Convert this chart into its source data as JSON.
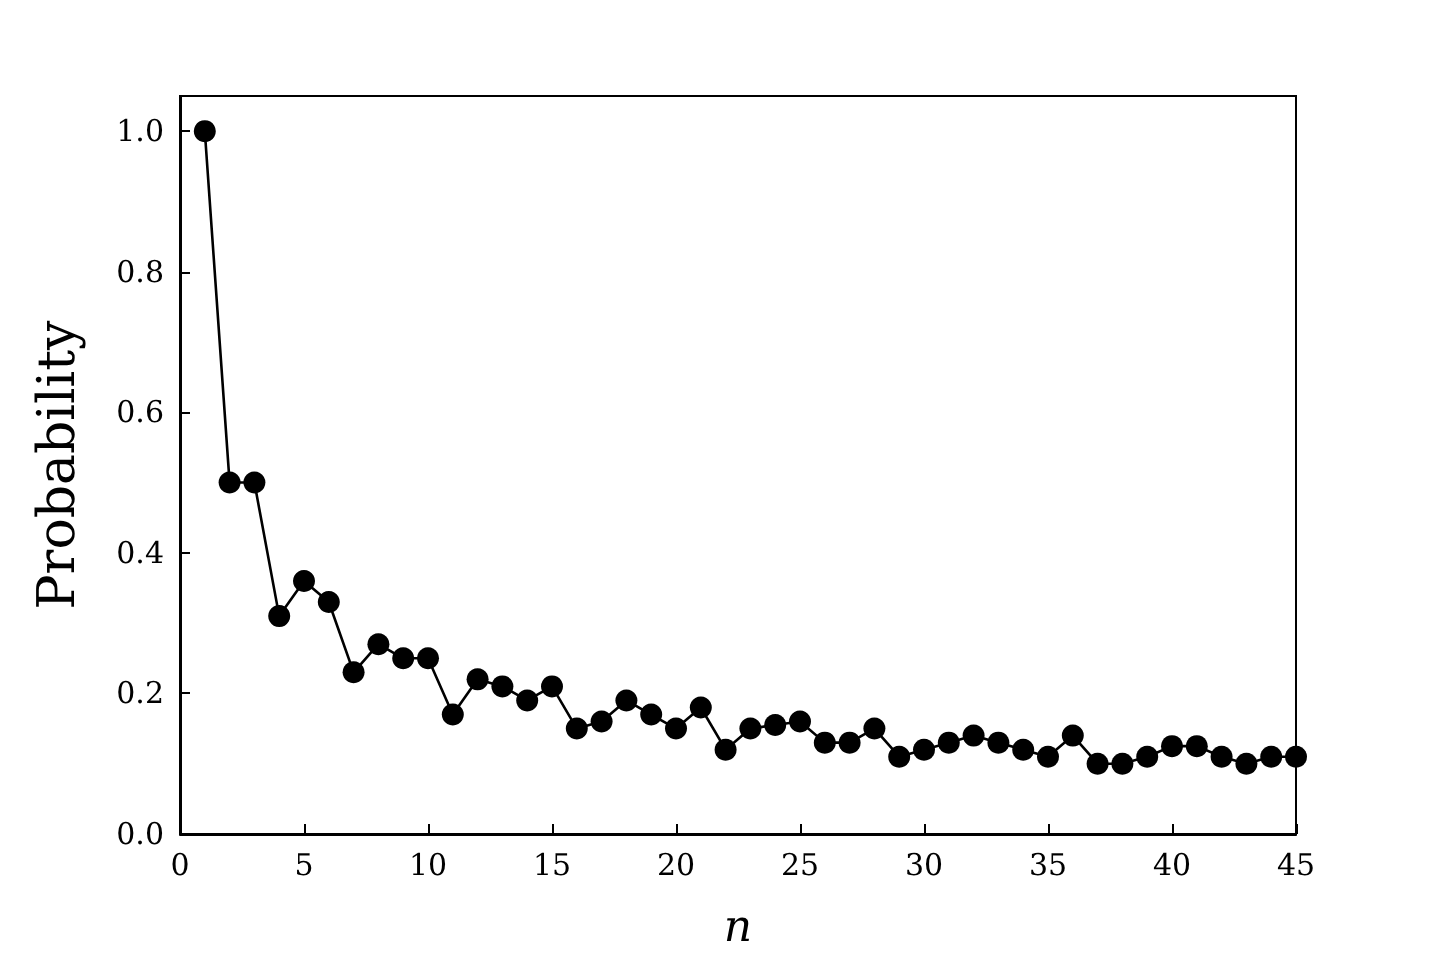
{
  "chart_data": {
    "type": "line",
    "xlabel": "n",
    "ylabel": "Probability",
    "x": [
      1,
      2,
      3,
      4,
      5,
      6,
      7,
      8,
      9,
      10,
      11,
      12,
      13,
      14,
      15,
      16,
      17,
      18,
      19,
      20,
      21,
      22,
      23,
      24,
      25,
      26,
      27,
      28,
      29,
      30,
      31,
      32,
      33,
      34,
      35,
      36,
      37,
      38,
      39,
      40,
      41,
      42,
      43,
      44,
      45
    ],
    "series": [
      {
        "color": "#000000",
        "values": [
          1.0,
          0.5,
          0.5,
          0.31,
          0.36,
          0.33,
          0.23,
          0.27,
          0.25,
          0.25,
          0.17,
          0.22,
          0.21,
          0.19,
          0.21,
          0.15,
          0.16,
          0.19,
          0.17,
          0.15,
          0.18,
          0.12,
          0.15,
          0.155,
          0.16,
          0.13,
          0.13,
          0.15,
          0.11,
          0.12,
          0.13,
          0.14,
          0.13,
          0.12,
          0.11,
          0.14,
          0.1,
          0.1,
          0.11,
          0.125,
          0.125,
          0.11,
          0.1,
          0.11,
          0.11
        ]
      }
    ],
    "xlim": [
      0,
      45
    ],
    "xticks": [
      0,
      5,
      10,
      15,
      20,
      25,
      30,
      35,
      40,
      45
    ],
    "ylim": [
      0,
      1.05
    ],
    "yticks": [
      {
        "value": 0,
        "label": "0.0"
      },
      {
        "value": 0.2,
        "label": "0.2"
      },
      {
        "value": 0.4,
        "label": "0.4"
      },
      {
        "value": 0.6,
        "label": "0.6"
      },
      {
        "value": 0.8,
        "label": "0.8"
      },
      {
        "value": 1,
        "label": "1.0"
      }
    ],
    "grid": false,
    "marker": "circle",
    "line_style": "solid"
  }
}
